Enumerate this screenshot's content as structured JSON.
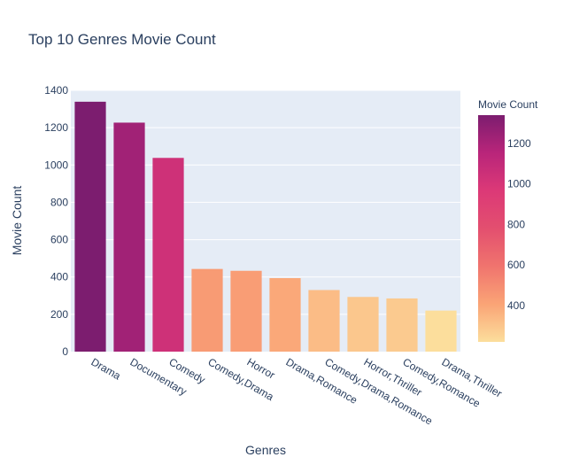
{
  "chart_data": {
    "type": "bar",
    "title": "Top 10 Genres Movie Count",
    "xlabel": "Genres",
    "ylabel": "Movie Count",
    "ylim": [
      0,
      1400
    ],
    "yticks": [
      0,
      200,
      400,
      600,
      800,
      1000,
      1200,
      1400
    ],
    "categories": [
      "Drama",
      "Documentary",
      "Comedy",
      "Comedy,Drama",
      "Horror",
      "Drama,Romance",
      "Comedy,Drama,Romance",
      "Horror,Thriller",
      "Comedy,Romance",
      "Drama,Thriller"
    ],
    "values": [
      1339,
      1227,
      1038,
      443,
      433,
      394,
      330,
      293,
      285,
      220
    ],
    "grid": true,
    "colorbar": {
      "title": "Movie Count",
      "range": [
        220,
        1339
      ],
      "ticks": [
        400,
        600,
        800,
        1000,
        1200
      ],
      "colorscale": [
        "#fcde9c",
        "#faa476",
        "#f0746e",
        "#e34f6f",
        "#dc3977",
        "#b9257a",
        "#7c1d6f"
      ]
    },
    "colors": {
      "plot_bg": "#e5ecf6",
      "grid": "#ffffff",
      "text": "#2a3f5f"
    }
  }
}
